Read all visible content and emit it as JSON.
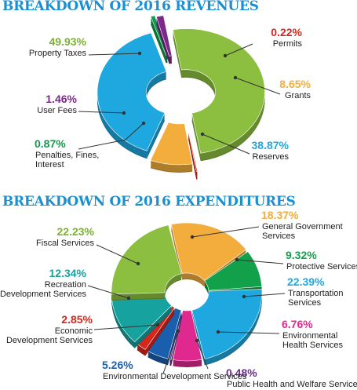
{
  "titles": {
    "revenues": "BREAKDOWN OF 2016 REVENUES",
    "expenditures": "BREAKDOWN OF 2016 EXPENDITURES"
  },
  "chart_data": [
    {
      "type": "pie",
      "title": "BREAKDOWN OF 2016 REVENUES",
      "slices": [
        {
          "name": "Property Taxes",
          "value": 49.93,
          "pct_label": "49.93%",
          "label_lines": [
            "Property Taxes"
          ],
          "color": "#8cbf3f",
          "pct_color": "#7ab32e"
        },
        {
          "name": "Permits",
          "value": 0.22,
          "pct_label": "0.22%",
          "label_lines": [
            "Permits"
          ],
          "color": "#d9261c",
          "pct_color": "#d9261c"
        },
        {
          "name": "Grants",
          "value": 8.65,
          "pct_label": "8.65%",
          "label_lines": [
            "Grants"
          ],
          "color": "#f2ad3d",
          "pct_color": "#f2ad3d"
        },
        {
          "name": "Reserves",
          "value": 38.87,
          "pct_label": "38.87%",
          "label_lines": [
            "Reserves"
          ],
          "color": "#1fa8e0",
          "pct_color": "#1fa8e0"
        },
        {
          "name": "Penalties, Fines, Interest",
          "value": 0.87,
          "pct_label": "0.87%",
          "label_lines": [
            "Penalties, Fines,",
            "Interest"
          ],
          "color": "#0f9b4b",
          "pct_color": "#0f9b4b"
        },
        {
          "name": "User Fees",
          "value": 1.46,
          "pct_label": "1.46%",
          "label_lines": [
            "User Fees"
          ],
          "color": "#7b2a8a",
          "pct_color": "#7b2a8a"
        }
      ]
    },
    {
      "type": "pie",
      "title": "BREAKDOWN OF 2016 EXPENDITURES",
      "slices": [
        {
          "name": "General Government Services",
          "value": 18.37,
          "pct_label": "18.37%",
          "label_lines": [
            "General Government",
            "Services"
          ],
          "color": "#f2ad3d",
          "pct_color": "#f2ad3d"
        },
        {
          "name": "Protective Services",
          "value": 9.32,
          "pct_label": "9.32%",
          "label_lines": [
            "Protective Services"
          ],
          "color": "#12a04a",
          "pct_color": "#12a04a"
        },
        {
          "name": "Transportation Services",
          "value": 22.39,
          "pct_label": "22.39%",
          "label_lines": [
            "Transportation",
            "Services"
          ],
          "color": "#1fa8e0",
          "pct_color": "#1fa8e0"
        },
        {
          "name": "Environmental Health Services",
          "value": 6.76,
          "pct_label": "6.76%",
          "label_lines": [
            "Environmental",
            "Health Services"
          ],
          "color": "#e0298f",
          "pct_color": "#e0298f"
        },
        {
          "name": "Public Health and Welfare Services",
          "value": 0.48,
          "pct_label": "0.48%",
          "label_lines": [
            "Public Health and Welfare Services"
          ],
          "color": "#6b2d8a",
          "pct_color": "#6b2d8a"
        },
        {
          "name": "Environmental Development Services",
          "value": 5.26,
          "pct_label": "5.26%",
          "label_lines": [
            "Environmental Development Services"
          ],
          "color": "#1a5fae",
          "pct_color": "#1a5fae"
        },
        {
          "name": "Economic Development Services",
          "value": 2.85,
          "pct_label": "2.85%",
          "label_lines": [
            "Economic",
            "Development Services"
          ],
          "color": "#d9261c",
          "pct_color": "#d9261c"
        },
        {
          "name": "Recreation Development Services",
          "value": 12.34,
          "pct_label": "12.34%",
          "label_lines": [
            "Recreation",
            "Development Services"
          ],
          "color": "#16a3a0",
          "pct_color": "#16a3a0"
        },
        {
          "name": "Fiscal Services",
          "value": 22.23,
          "pct_label": "22.23%",
          "label_lines": [
            "Fiscal Services"
          ],
          "color": "#8cbf3f",
          "pct_color": "#7ab32e"
        }
      ]
    }
  ]
}
